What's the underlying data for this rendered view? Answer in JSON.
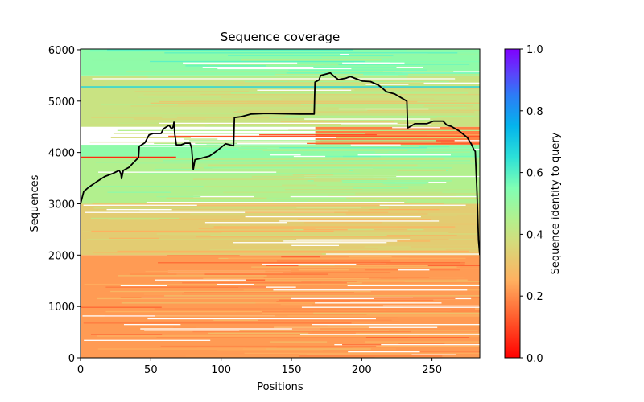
{
  "chart_data": {
    "type": "heatmap",
    "title": "Sequence coverage",
    "xlabel": "Positions",
    "ylabel": "Sequences",
    "xlim": [
      0,
      284
    ],
    "ylim": [
      0,
      6015
    ],
    "xticks": [
      0,
      50,
      100,
      150,
      200,
      250
    ],
    "xtick_labels": [
      "0",
      "50",
      "100",
      "150",
      "200",
      "250"
    ],
    "yticks": [
      0,
      1000,
      2000,
      3000,
      4000,
      5000,
      6000
    ],
    "ytick_labels": [
      "0",
      "1000",
      "2000",
      "3000",
      "4000",
      "5000",
      "6000"
    ],
    "grid": false,
    "colorbar": {
      "label": "Sequence identity to query",
      "range": [
        0,
        1
      ],
      "ticks": [
        0.0,
        0.2,
        0.4,
        0.6,
        0.8,
        1.0
      ],
      "tick_labels": [
        "0.0",
        "0.2",
        "0.4",
        "0.6",
        "0.8",
        "1.0"
      ],
      "colormap": "rainbow_r",
      "colors": [
        "#ff0000",
        "#ff8040",
        "#ffb862",
        "#b4f08c",
        "#80ffb4",
        "#2ad4e0",
        "#1a96f0",
        "#4a58f8",
        "#8000ff"
      ]
    },
    "bands": [
      {
        "y0": 0,
        "y1": 2000,
        "x0": 0,
        "x1": 284,
        "identity": 0.22
      },
      {
        "y0": 2000,
        "y1": 3000,
        "x0": 0,
        "x1": 284,
        "identity": 0.33
      },
      {
        "y0": 3000,
        "y1": 3900,
        "x0": 0,
        "x1": 284,
        "identity": 0.45
      },
      {
        "y0": 3900,
        "y1": 4150,
        "x0": 0,
        "x1": 284,
        "identity": 0.52
      },
      {
        "y0": 4150,
        "y1": 4500,
        "x0": 167,
        "x1": 284,
        "identity": 0.18
      },
      {
        "y0": 4500,
        "y1": 5500,
        "x0": 0,
        "x1": 284,
        "identity": 0.4
      },
      {
        "y0": 5500,
        "y1": 6015,
        "x0": 0,
        "x1": 284,
        "identity": 0.52
      }
    ],
    "coverage_line": {
      "name": "coverage",
      "color": "#000000",
      "x": [
        0,
        2.3,
        5.7,
        11.5,
        17.2,
        22.9,
        27.5,
        28.7,
        29.2,
        30.4,
        34.4,
        39.0,
        41.3,
        41.8,
        45.8,
        48.7,
        51.6,
        57.3,
        59.0,
        63.0,
        64.8,
        65.9,
        66.5,
        67.0,
        68.2,
        71.6,
        74.5,
        77.9,
        79.1,
        80.2,
        81.4,
        86.0,
        91.7,
        97.4,
        103.2,
        108.9,
        109.5,
        114.6,
        121.5,
        131.8,
        155.9,
        166.2,
        166.8,
        169.6,
        170.8,
        177.7,
        180.0,
        183.4,
        189.1,
        191.9,
        194.8,
        200.6,
        206.3,
        212.0,
        217.8,
        223.5,
        232.1,
        232.7,
        234.9,
        237.8,
        246.4,
        251.0,
        257.9,
        260.7,
        263.6,
        269.3,
        275.1,
        277.9,
        279.7,
        280.8,
        282.0,
        283.1,
        284.0
      ],
      "y": [
        3000,
        3240,
        3320,
        3430,
        3530,
        3590,
        3650,
        3590,
        3490,
        3650,
        3710,
        3840,
        3900,
        4120,
        4190,
        4340,
        4370,
        4370,
        4460,
        4530,
        4460,
        4500,
        4590,
        4370,
        4150,
        4150,
        4180,
        4180,
        4080,
        3670,
        3860,
        3890,
        3930,
        4040,
        4170,
        4130,
        4680,
        4700,
        4750,
        4760,
        4750,
        4750,
        5370,
        5410,
        5500,
        5550,
        5490,
        5420,
        5450,
        5480,
        5450,
        5390,
        5380,
        5310,
        5180,
        5140,
        5000,
        4480,
        4510,
        4560,
        4560,
        4610,
        4610,
        4530,
        4510,
        4420,
        4290,
        4170,
        4060,
        4020,
        3230,
        2290,
        2000
      ]
    }
  }
}
